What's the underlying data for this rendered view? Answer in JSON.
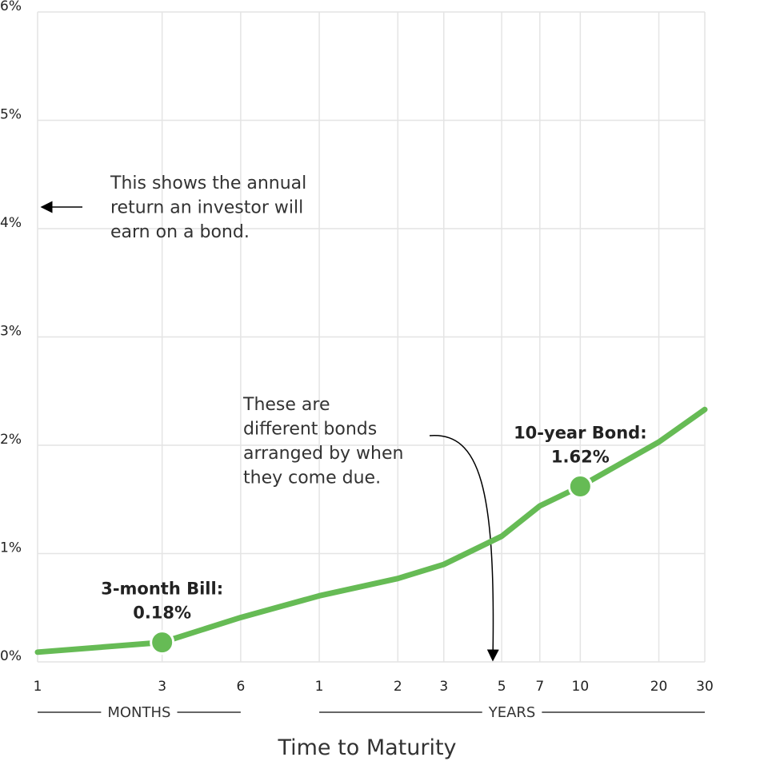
{
  "chart_data": {
    "type": "line",
    "x": [
      1,
      3,
      6,
      12,
      24,
      36,
      60,
      84,
      120,
      240,
      360
    ],
    "values": [
      0.09,
      0.18,
      0.41,
      0.61,
      0.77,
      0.9,
      1.16,
      1.44,
      1.62,
      2.03,
      2.33
    ],
    "point_labels": [
      null,
      "3-month Bill:",
      null,
      null,
      null,
      null,
      null,
      null,
      "10-year Bond:",
      null,
      null
    ],
    "value_labels": [
      null,
      "0.18%",
      null,
      null,
      null,
      null,
      null,
      null,
      "1.62%",
      null,
      null
    ],
    "color": "#66bb55",
    "xscale": "log",
    "xlim": [
      1,
      360
    ],
    "xticks": [
      1,
      3,
      6,
      {
        "value": 12,
        "label": "1"
      },
      {
        "value": 24,
        "label": "2"
      },
      {
        "value": 36,
        "label": "3"
      },
      {
        "value": 60,
        "label": "5"
      },
      {
        "value": 84,
        "label": "7"
      },
      {
        "value": 120,
        "label": "10"
      },
      {
        "value": 240,
        "label": "20"
      },
      {
        "value": 360,
        "label": "30"
      }
    ],
    "ylim": [
      0,
      6
    ],
    "yticks": [
      {
        "value": 0,
        "label": "0%"
      },
      {
        "value": 1,
        "label": "1%"
      },
      {
        "value": 2,
        "label": "2%"
      },
      {
        "value": 3,
        "label": "3%"
      },
      {
        "value": 4,
        "label": "4%"
      },
      {
        "value": 5,
        "label": "5%"
      },
      {
        "value": 6,
        "label": "6%"
      }
    ],
    "grid": true,
    "groups": [
      {
        "label": "MONTHS",
        "from": 1,
        "to": 6
      },
      {
        "label": "YEARS",
        "from": 12,
        "to": 360
      }
    ],
    "xlabel": "Time to Maturity",
    "annotations": [
      {
        "lines": [
          "This shows the annual",
          "return an investor will",
          "earn on a bond."
        ]
      },
      {
        "lines": [
          "These are",
          "different bonds",
          "arranged by when",
          "they come due."
        ]
      }
    ]
  }
}
